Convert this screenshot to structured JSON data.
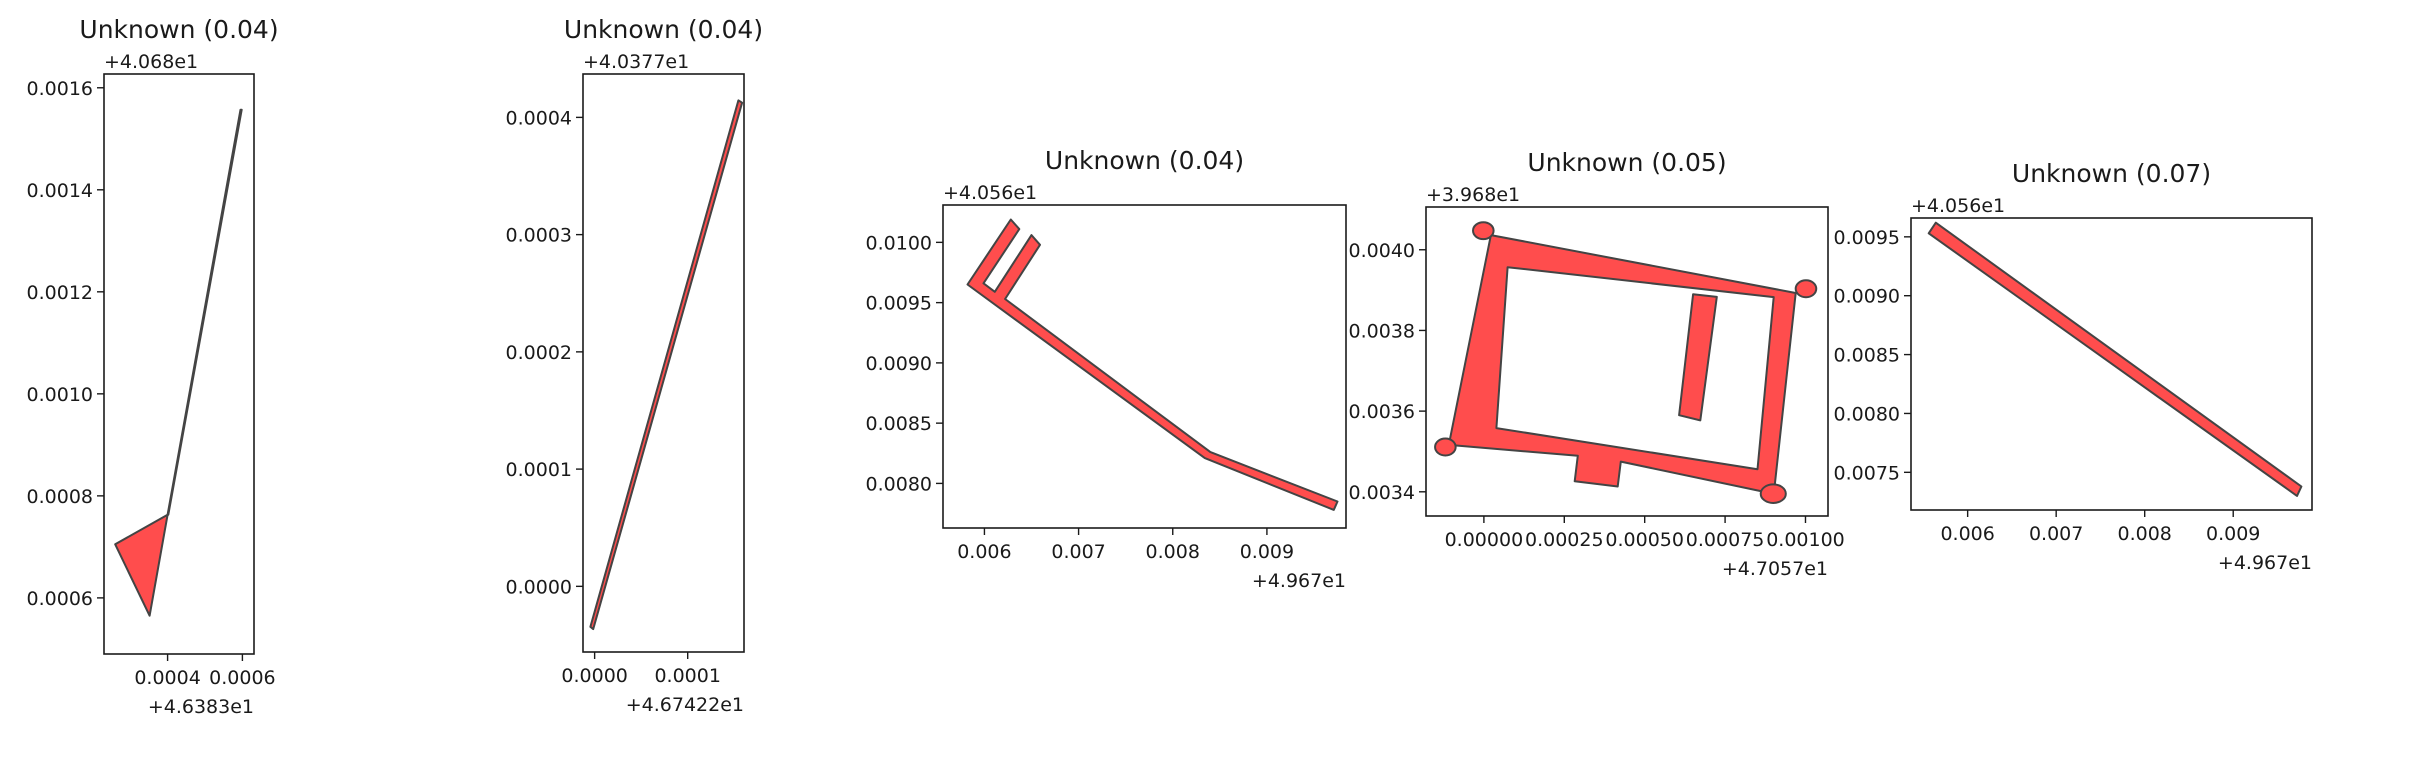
{
  "colors": {
    "fill": "#ff4d4d",
    "stroke": "#444444",
    "axes": "#1a1a1a",
    "background": "#ffffff"
  },
  "chart_data": [
    {
      "type": "polygon",
      "title": "Unknown (0.04)",
      "x_offset": "+4.6383e1",
      "y_offset": "+4.068e1",
      "xlim": [
        0.00023,
        0.000631
      ],
      "ylim": [
        0.00049,
        0.001627
      ],
      "xticks": [
        {
          "v": 0.0004,
          "label": "0.0004"
        },
        {
          "v": 0.0006,
          "label": "0.0006"
        }
      ],
      "yticks": [
        {
          "v": 0.0006,
          "label": "0.0006"
        },
        {
          "v": 0.0008,
          "label": "0.0008"
        },
        {
          "v": 0.001,
          "label": "0.0010"
        },
        {
          "v": 0.0012,
          "label": "0.0012"
        },
        {
          "v": 0.0014,
          "label": "0.0014"
        },
        {
          "v": 0.0016,
          "label": "0.0016"
        }
      ],
      "polygons": [
        [
          [
            0.00026,
            0.000705
          ],
          [
            0.0004,
            0.000763
          ],
          [
            0.000352,
            0.000565
          ]
        ],
        [
          [
            0.0004,
            0.000763
          ],
          [
            0.000595,
            0.001557
          ],
          [
            0.000598,
            0.001557
          ],
          [
            0.000402,
            0.000763
          ]
        ]
      ]
    },
    {
      "type": "polygon",
      "title": "Unknown (0.04)",
      "x_offset": "+4.67422e1",
      "y_offset": "+4.0377e1",
      "xlim": [
        -1.25e-05,
        0.0001605
      ],
      "ylim": [
        -5.6e-05,
        0.000437
      ],
      "xticks": [
        {
          "v": 0.0,
          "label": "0.0000"
        },
        {
          "v": 0.0001,
          "label": "0.0001"
        }
      ],
      "yticks": [
        {
          "v": 0.0,
          "label": "0.0000"
        },
        {
          "v": 0.0001,
          "label": "0.0001"
        },
        {
          "v": 0.0002,
          "label": "0.0002"
        },
        {
          "v": 0.0003,
          "label": "0.0003"
        },
        {
          "v": 0.0004,
          "label": "0.0004"
        }
      ],
      "polygons": [
        [
          [
            -4.5e-06,
            -3.45e-05
          ],
          [
            0.0001545,
            0.0004145
          ],
          [
            0.0001585,
            0.0004125
          ],
          [
            -1.5e-06,
            -3.65e-05
          ]
        ]
      ]
    },
    {
      "type": "polygon",
      "title": "Unknown (0.04)",
      "x_offset": "+4.967e1",
      "y_offset": "+4.056e1",
      "xlim": [
        0.00556,
        0.00984
      ],
      "ylim": [
        0.00763,
        0.01031
      ],
      "xticks": [
        {
          "v": 0.006,
          "label": "0.006"
        },
        {
          "v": 0.007,
          "label": "0.007"
        },
        {
          "v": 0.008,
          "label": "0.008"
        },
        {
          "v": 0.009,
          "label": "0.009"
        }
      ],
      "yticks": [
        {
          "v": 0.008,
          "label": "0.0080"
        },
        {
          "v": 0.0085,
          "label": "0.0085"
        },
        {
          "v": 0.009,
          "label": "0.0090"
        },
        {
          "v": 0.0095,
          "label": "0.0095"
        },
        {
          "v": 0.01,
          "label": "0.0100"
        }
      ],
      "polygons": [
        [
          [
            0.00582,
            0.00965
          ],
          [
            0.00628,
            0.01019
          ],
          [
            0.00637,
            0.01011
          ],
          [
            0.00599,
            0.00966
          ],
          [
            0.00611,
            0.00959
          ],
          [
            0.0065,
            0.01006
          ],
          [
            0.00659,
            0.00998
          ],
          [
            0.00622,
            0.00953
          ],
          [
            0.0084,
            0.00826
          ],
          [
            0.00975,
            0.00785
          ],
          [
            0.00971,
            0.00778
          ],
          [
            0.00834,
            0.00821
          ]
        ]
      ]
    },
    {
      "type": "polygon",
      "title": "Unknown (0.05)",
      "x_offset": "+4.7057e1",
      "y_offset": "+3.968e1",
      "xlim": [
        -0.00018,
        0.00107
      ],
      "ylim": [
        0.00334,
        0.004106
      ],
      "xticks": [
        {
          "v": 0.0,
          "label": "0.00000"
        },
        {
          "v": 0.00025,
          "label": "0.00025"
        },
        {
          "v": 0.0005,
          "label": "0.00050"
        },
        {
          "v": 0.00075,
          "label": "0.00075"
        },
        {
          "v": 0.001,
          "label": "0.00100"
        }
      ],
      "yticks": [
        {
          "v": 0.0034,
          "label": "0.0034"
        },
        {
          "v": 0.0036,
          "label": "0.0036"
        },
        {
          "v": 0.0038,
          "label": "0.0038"
        },
        {
          "v": 0.004,
          "label": "0.0040"
        }
      ],
      "polygons": [
        [
          [
            2.17e-05,
            0.0040364
          ],
          [
            0.0009697,
            0.0038929
          ],
          [
            0.0009016,
            0.0033948
          ],
          [
            0.0004257,
            0.0034748
          ],
          [
            0.000416,
            0.0034131
          ],
          [
            0.0002824,
            0.003426
          ],
          [
            0.0002921,
            0.0034892
          ],
          [
            -0.0001091,
            0.0035162
          ]
        ],
        [
          [
            7.36e-05,
            0.0039567
          ],
          [
            0.0009011,
            0.0038827
          ],
          [
            0.0008509,
            0.003456
          ],
          [
            3.9e-05,
            0.0035578
          ]
        ],
        [
          [
            0.0006504,
            0.0038896
          ],
          [
            0.0007242,
            0.0038831
          ],
          [
            0.000673,
            0.0035771
          ],
          [
            0.000607,
            0.00359
          ]
        ]
      ],
      "knobs": [
        {
          "x": -1.8e-06,
          "y": 0.0040473,
          "rx": 3.2e-05,
          "ry": 2.1e-05
        },
        {
          "x": 0.0010015,
          "y": 0.0039033,
          "rx": 3.2e-05,
          "ry": 2.1e-05
        },
        {
          "x": -0.0001198,
          "y": 0.0035111,
          "rx": 3.2e-05,
          "ry": 2.1e-05
        },
        {
          "x": 0.0008998,
          "y": 0.0033953,
          "rx": 3.9e-05,
          "ry": 2.3e-05
        }
      ]
    },
    {
      "type": "polygon",
      "title": "Unknown (0.07)",
      "x_offset": "+4.967e1",
      "y_offset": "+4.056e1",
      "xlim": [
        0.00536,
        0.00989
      ],
      "ylim": [
        0.00718,
        0.00966
      ],
      "xticks": [
        {
          "v": 0.006,
          "label": "0.006"
        },
        {
          "v": 0.007,
          "label": "0.007"
        },
        {
          "v": 0.008,
          "label": "0.008"
        },
        {
          "v": 0.009,
          "label": "0.009"
        }
      ],
      "yticks": [
        {
          "v": 0.0075,
          "label": "0.0075"
        },
        {
          "v": 0.008,
          "label": "0.0080"
        },
        {
          "v": 0.0085,
          "label": "0.0085"
        },
        {
          "v": 0.009,
          "label": "0.0090"
        },
        {
          "v": 0.0095,
          "label": "0.0095"
        }
      ],
      "polygons": [
        [
          [
            0.00556,
            0.00953
          ],
          [
            0.00564,
            0.00962
          ],
          [
            0.00977,
            0.00738
          ],
          [
            0.00972,
            0.0073
          ]
        ]
      ]
    }
  ]
}
